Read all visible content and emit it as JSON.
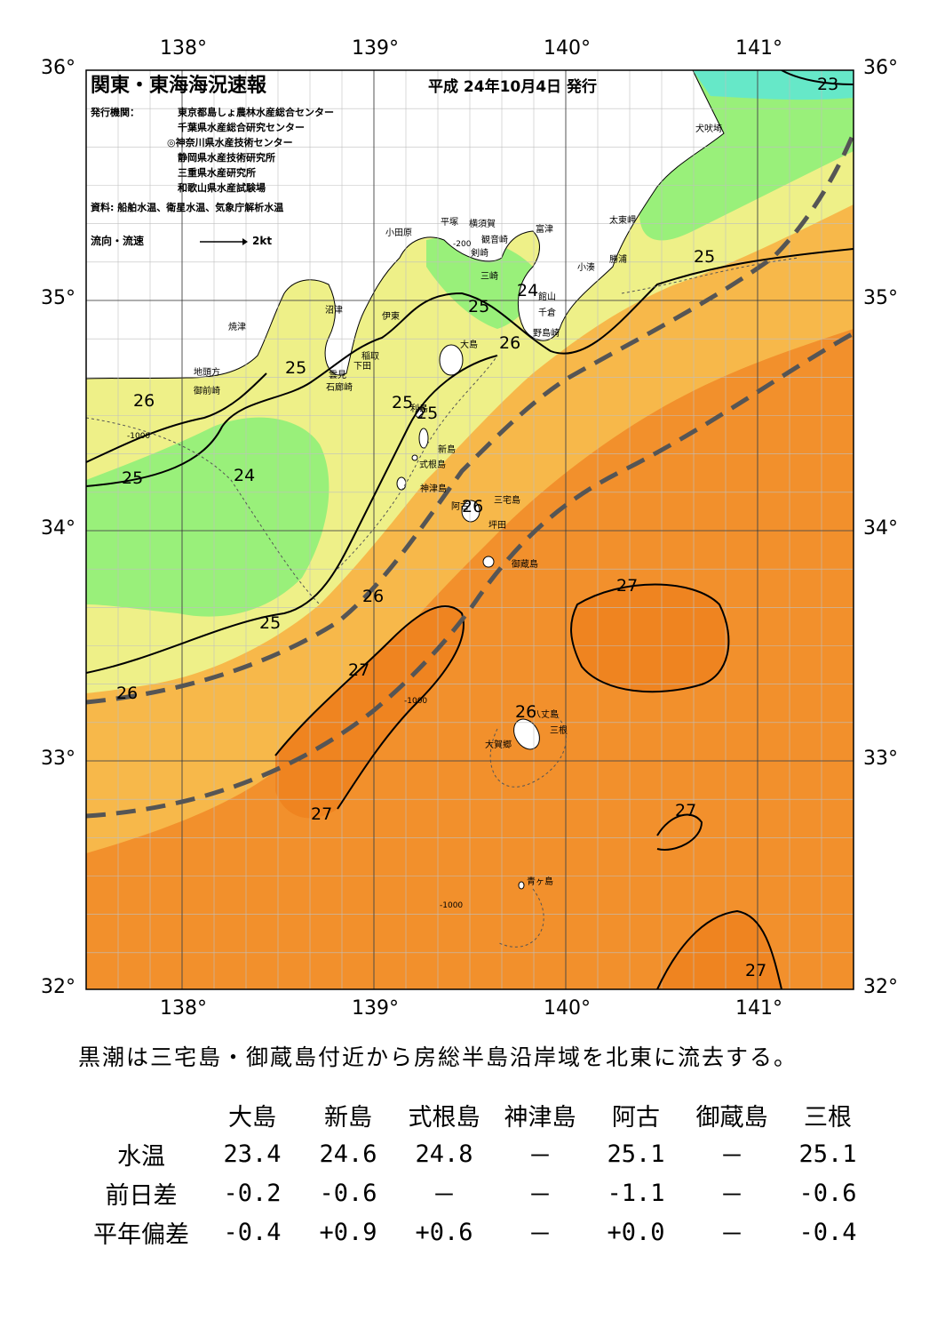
{
  "header": {
    "title": "関東・東海海況速報",
    "date": "平成 24年10月4日 発行",
    "issuer_label": "発行機関：",
    "issuers": [
      "東京都島しょ農林水産総合センター",
      "千葉県水産総合研究センター",
      "◎神奈川県水産技術センター",
      "静岡県水産技術研究所",
      "三重県水産研究所",
      "和歌山県水産試験場"
    ],
    "source": "資料: 船舶水温、衛星水温、気象庁解析水温",
    "flow_label": "流向・流速",
    "flow_scale": "2kt"
  },
  "axes": {
    "lon_ticks": [
      "138°",
      "139°",
      "140°",
      "141°"
    ],
    "lat_ticks": [
      "36°",
      "35°",
      "34°",
      "33°",
      "32°"
    ]
  },
  "places": [
    "犬吠埼",
    "太東岬",
    "勝浦",
    "小湊",
    "館山",
    "千倉",
    "野島崎",
    "富津",
    "観音崎",
    "横須賀",
    "剣崎",
    "三崎",
    "平塚",
    "小田原",
    "沼津",
    "伊東",
    "焼津",
    "稲取",
    "下田",
    "雲見",
    "石廊崎",
    "地頭方",
    "御前崎",
    "大島",
    "利島",
    "新島",
    "式根島",
    "神津島",
    "三宅島",
    "阿古",
    "坪田",
    "御蔵島",
    "八丈島",
    "三根",
    "大賀郷",
    "青ヶ島"
  ],
  "contour_labels": [
    "23",
    "25",
    "24",
    "25",
    "26",
    "25",
    "26",
    "25",
    "25",
    "24",
    "25",
    "26",
    "26",
    "25",
    "26",
    "27",
    "27",
    "26",
    "27",
    "27",
    "27"
  ],
  "depth_labels": [
    "-200",
    "-1000"
  ],
  "legend_colors": {
    "23": "#66e8c8",
    "24": "#99f07a",
    "25": "#eef088",
    "26": "#f7b84a",
    "27": "#f2902c",
    "land": "#ffffff",
    "kuroshio_axis": "#555555"
  },
  "summary": "黒潮は三宅島・御蔵島付近から房総半島沿岸域を北東に流去する。",
  "stats": {
    "columns": [
      "大島",
      "新島",
      "式根島",
      "神津島",
      "阿古",
      "御蔵島",
      "三根"
    ],
    "rows": [
      {
        "label": "水温",
        "values": [
          "23.4",
          "24.6",
          "24.8",
          "－",
          "25.1",
          "－",
          "25.1"
        ]
      },
      {
        "label": "前日差",
        "values": [
          "-0.2",
          "-0.6",
          "－",
          "－",
          "-1.1",
          "－",
          "-0.6"
        ]
      },
      {
        "label": "平年偏差",
        "values": [
          "-0.4",
          "+0.9",
          "+0.6",
          "－",
          "+0.0",
          "－",
          "-0.4"
        ]
      }
    ]
  }
}
